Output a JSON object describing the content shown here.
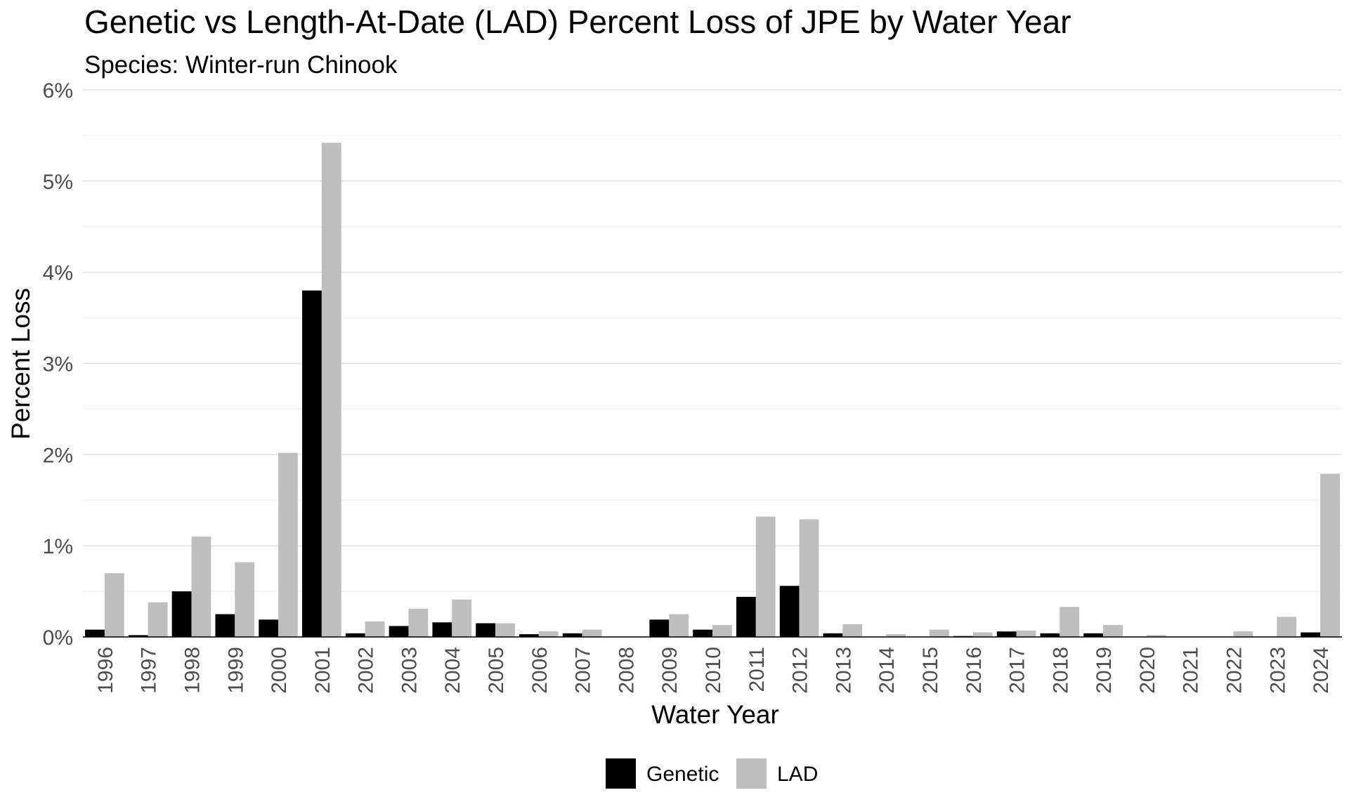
{
  "chart_data": {
    "type": "bar",
    "title": "Genetic vs Length-At-Date (LAD) Percent Loss of JPE by Water Year",
    "subtitle": "Species: Winter-run Chinook",
    "xlabel": "Water Year",
    "ylabel": "Percent Loss",
    "ylim": [
      0,
      6
    ],
    "yticks": [
      "0%",
      "1%",
      "2%",
      "3%",
      "4%",
      "5%",
      "6%"
    ],
    "grid": true,
    "legend_position": "bottom",
    "categories": [
      "1996",
      "1997",
      "1998",
      "1999",
      "2000",
      "2001",
      "2002",
      "2003",
      "2004",
      "2005",
      "2006",
      "2007",
      "2008",
      "2009",
      "2010",
      "2011",
      "2012",
      "2013",
      "2014",
      "2015",
      "2016",
      "2017",
      "2018",
      "2019",
      "2020",
      "2021",
      "2022",
      "2023",
      "2024"
    ],
    "series": [
      {
        "name": "Genetic",
        "color": "#000000",
        "values": [
          0.08,
          0.02,
          0.5,
          0.25,
          0.19,
          3.8,
          0.04,
          0.12,
          0.16,
          0.15,
          0.03,
          0.04,
          0.0,
          0.19,
          0.08,
          0.44,
          0.56,
          0.04,
          0.0,
          0.0,
          0.01,
          0.06,
          0.04,
          0.04,
          0.0,
          0.0,
          0.0,
          0.0,
          0.05
        ]
      },
      {
        "name": "LAD",
        "color": "#bebebe",
        "values": [
          0.7,
          0.38,
          1.1,
          0.82,
          2.02,
          5.42,
          0.17,
          0.31,
          0.41,
          0.15,
          0.06,
          0.08,
          0.0,
          0.25,
          0.13,
          1.32,
          1.29,
          0.14,
          0.03,
          0.08,
          0.05,
          0.07,
          0.33,
          0.13,
          0.02,
          0.0,
          0.06,
          0.22,
          1.79
        ]
      }
    ]
  }
}
